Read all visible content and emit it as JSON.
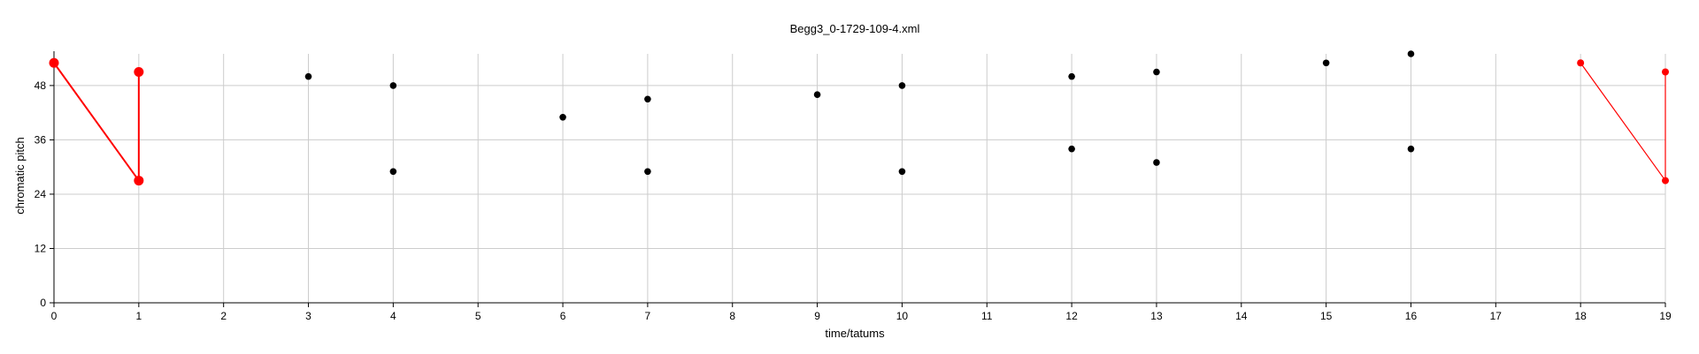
{
  "chart_data": {
    "type": "scatter",
    "title": "Begg3_0-1729-109-4.xml",
    "xlabel": "time/tatums",
    "ylabel": "chromatic pitch",
    "xlim": [
      0,
      19
    ],
    "ylim": [
      0,
      55
    ],
    "x_ticks": [
      0,
      1,
      2,
      3,
      4,
      5,
      6,
      7,
      8,
      9,
      10,
      11,
      12,
      13,
      14,
      15,
      16,
      17,
      18,
      19
    ],
    "y_ticks": [
      0,
      12,
      24,
      36,
      48
    ],
    "grid": true,
    "colors": {
      "points": "#000000",
      "highlight": "#ff0000",
      "grid": "#cccccc"
    },
    "series": [
      {
        "points": [
          [
            3,
            50
          ],
          [
            4,
            48
          ],
          [
            4,
            29
          ],
          [
            6,
            41
          ],
          [
            7,
            45
          ],
          [
            7,
            29
          ],
          [
            9,
            46
          ],
          [
            10,
            48
          ],
          [
            10,
            29
          ],
          [
            12,
            50
          ],
          [
            12,
            34
          ],
          [
            13,
            51
          ],
          [
            13,
            31
          ],
          [
            15,
            53
          ],
          [
            16,
            55
          ],
          [
            16,
            34
          ]
        ]
      }
    ],
    "highlight_paths": [
      {
        "points": [
          [
            0,
            53
          ],
          [
            1,
            27
          ],
          [
            1,
            51
          ]
        ],
        "style": "bold"
      },
      {
        "points": [
          [
            18,
            53
          ],
          [
            19,
            27
          ],
          [
            19,
            51
          ]
        ],
        "style": "thin"
      }
    ]
  }
}
